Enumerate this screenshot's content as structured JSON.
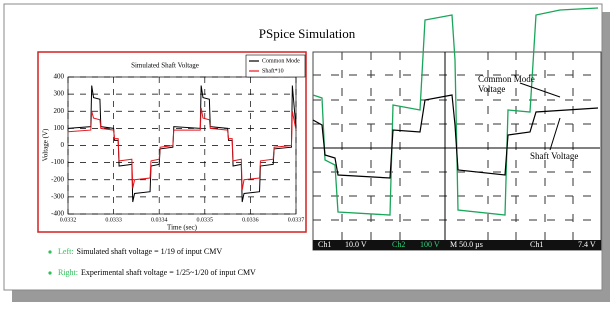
{
  "slide_title": "PSpice Simulation",
  "chart_data": {
    "type": "line",
    "title": "Simulated Shaft Voltage",
    "x_label": "Time (sec)",
    "y_label": "Voltage (V)",
    "x": [
      0.0332,
      0.03325,
      0.033252,
      0.033256,
      0.03327,
      0.033272,
      0.0333,
      0.033302,
      0.03331,
      0.033312,
      0.03334,
      0.033342,
      0.033346,
      0.03338,
      0.033382,
      0.0334,
      0.033402,
      0.03343,
      0.033432,
      0.03349,
      0.033492,
      0.033496,
      0.03351,
      0.033512,
      0.03355,
      0.033552,
      0.03356,
      0.033562,
      0.03358,
      0.033582,
      0.033586,
      0.03362,
      0.033622,
      0.03365,
      0.033652,
      0.03369,
      0.033692,
      0.0337
    ],
    "series": [
      {
        "name": "Common Mode",
        "color": "#000000",
        "values": [
          100,
          110,
          350,
          280,
          270,
          110,
          100,
          30,
          30,
          -120,
          -110,
          -330,
          -280,
          -270,
          -120,
          -110,
          -20,
          -10,
          110,
          100,
          350,
          280,
          270,
          110,
          100,
          30,
          30,
          -120,
          -110,
          -330,
          -280,
          -270,
          -120,
          -110,
          -20,
          -10,
          350,
          100
        ]
      },
      {
        "name": "Shaft*10",
        "color": "#e8141c",
        "values": [
          80,
          90,
          200,
          160,
          150,
          100,
          90,
          40,
          40,
          -90,
          -80,
          -250,
          -200,
          -190,
          -90,
          -80,
          -10,
          0,
          90,
          90,
          220,
          160,
          150,
          100,
          90,
          40,
          40,
          -90,
          -80,
          -260,
          -200,
          -190,
          -90,
          -80,
          -10,
          0,
          200,
          90
        ]
      }
    ],
    "xlim": [
      0.0332,
      0.0337
    ],
    "xticks": [
      0.0332,
      0.0333,
      0.0334,
      0.0335,
      0.0336,
      0.0337
    ],
    "ylim": [
      -400,
      400
    ],
    "yticks": [
      -400,
      -300,
      -200,
      -100,
      0,
      100,
      200,
      300,
      400
    ],
    "grid": true,
    "legend": "top-right"
  },
  "scope": {
    "common_mode_label": [
      "Common Mode",
      "Voltage"
    ],
    "shaft_label": "Shaft Voltage",
    "status": [
      {
        "text": "Ch1",
        "color": "#ffffff"
      },
      {
        "text": "10.0 V",
        "color": "#ffffff"
      },
      {
        "text": "Ch2",
        "color": "#2fd37a"
      },
      {
        "text": "100 V",
        "color": "#2fd37a"
      },
      {
        "text": "M 50.0 µs",
        "color": "#ffffff"
      },
      {
        "text": "Ch1",
        "color": "#ffffff"
      },
      {
        "text": "7.4 V",
        "color": "#ffffff"
      }
    ]
  },
  "bullets": [
    {
      "label": "Left:",
      "text": "Simulated shaft voltage = 1/19 of input CMV"
    },
    {
      "label": "Right:",
      "text": "Experimental shaft voltage = 1/25~1/20 of input CMV"
    }
  ]
}
